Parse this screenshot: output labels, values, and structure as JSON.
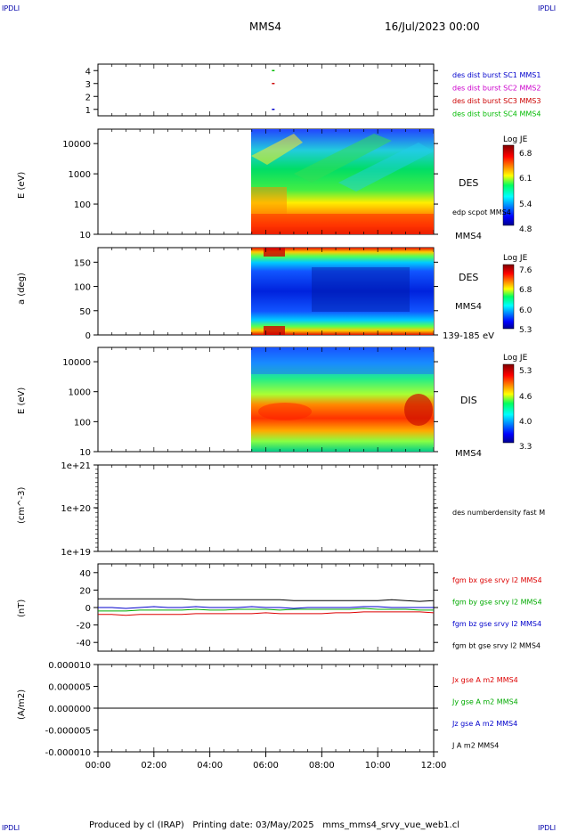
{
  "header": {
    "corner_tl": "IPDLI",
    "corner_tr": "IPDLI",
    "corner_bl": "IPDLI",
    "corner_br": "IPDLI",
    "spacecraft": "MMS4",
    "datetime": "16/Jul/2023 00:00"
  },
  "footer": {
    "text": "Produced by cl (IRAP)   Printing date: 03/May/2025   mms_mms4_srvy_vue_web1.cl"
  },
  "colors": {
    "mms1": "#0000cc",
    "mms2": "#cc00cc",
    "mms3": "#cc0000",
    "mms4": "#00bb00",
    "bx": "#dd0000",
    "by": "#00aa00",
    "bz": "#0000cc",
    "bt": "#000000"
  },
  "chart_data": [
    {
      "type": "scatter",
      "panel": "burst",
      "ylim": [
        0.5,
        4.5
      ],
      "yticks": [
        "1",
        "2",
        "3",
        "4"
      ],
      "series": [
        {
          "name": "des dist burst SC1 MMS1",
          "x": [
            "06:15"
          ],
          "values": [
            1
          ]
        },
        {
          "name": "des dist burst SC2 MMS2",
          "x": [],
          "values": []
        },
        {
          "name": "des dist burst SC3 MMS3",
          "x": [
            "06:15"
          ],
          "values": [
            3
          ]
        },
        {
          "name": "des dist burst SC4 MMS4",
          "x": [
            "06:15"
          ],
          "values": [
            4
          ]
        }
      ]
    },
    {
      "type": "heatmap",
      "panel": "des_energy",
      "ylabel": "E (eV)",
      "yscale": "log",
      "ylim": [
        10,
        30000
      ],
      "yticks": [
        "10",
        "100",
        "1000",
        "10000"
      ],
      "data_start": "05:30",
      "data_end": "12:00",
      "labels": [
        "DES",
        "edp scpot MMS4",
        "MMS4"
      ],
      "colorbar": {
        "title": "Log JE",
        "ticks": [
          "6.8",
          "6.1",
          "5.4",
          "4.8"
        ],
        "range": [
          4.8,
          6.8
        ]
      }
    },
    {
      "type": "heatmap",
      "panel": "des_pitch",
      "ylabel": "a (deg)",
      "ylim": [
        0,
        180
      ],
      "yticks": [
        "0",
        "50",
        "100",
        "150"
      ],
      "data_start": "05:30",
      "data_end": "12:00",
      "labels": [
        "DES",
        "MMS4",
        "139-185 eV"
      ],
      "colorbar": {
        "title": "Log JE",
        "ticks": [
          "7.6",
          "6.8",
          "6.0",
          "5.3"
        ],
        "range": [
          5.3,
          7.6
        ]
      }
    },
    {
      "type": "heatmap",
      "panel": "dis_energy",
      "ylabel": "E (eV)",
      "yscale": "log",
      "ylim": [
        10,
        30000
      ],
      "yticks": [
        "10",
        "100",
        "1000",
        "10000"
      ],
      "data_start": "05:30",
      "data_end": "12:00",
      "labels": [
        "DIS",
        "MMS4"
      ],
      "colorbar": {
        "title": "Log JE",
        "ticks": [
          "5.3",
          "4.6",
          "4.0",
          "3.3"
        ],
        "range": [
          3.3,
          5.3
        ]
      }
    },
    {
      "type": "line",
      "panel": "density",
      "ylabel": "(cm^-3)",
      "yscale": "log",
      "yticks": [
        "1e+19",
        "1e+20",
        "1e+21"
      ],
      "series": [
        {
          "name": "des numberdensity fast M",
          "x": [],
          "values": []
        }
      ]
    },
    {
      "type": "line",
      "panel": "fgm",
      "ylabel": "(nT)",
      "ylim": [
        -50,
        50
      ],
      "yticks": [
        "-40",
        "-20",
        "0",
        "20",
        "40"
      ],
      "x": [
        "00:00",
        "00:30",
        "01:00",
        "01:30",
        "02:00",
        "02:30",
        "03:00",
        "03:30",
        "04:00",
        "04:30",
        "05:00",
        "05:30",
        "06:00",
        "06:30",
        "07:00",
        "07:30",
        "08:00",
        "08:30",
        "09:00",
        "09:30",
        "10:00",
        "10:30",
        "11:00",
        "11:30",
        "12:00"
      ],
      "series": [
        {
          "name": "fgm bx gse srvy l2 MMS4",
          "values": [
            -8,
            -8,
            -9,
            -8,
            -8,
            -8,
            -8,
            -7,
            -7,
            -7,
            -7,
            -7,
            -6,
            -7,
            -7,
            -7,
            -7,
            -6,
            -6,
            -5,
            -5,
            -5,
            -5,
            -5,
            -6
          ]
        },
        {
          "name": "fgm by gse srvy l2 MMS4",
          "values": [
            -4,
            -4,
            -4,
            -3,
            -3,
            -3,
            -3,
            -2,
            -3,
            -3,
            -2,
            -2,
            -2,
            -3,
            -2,
            -2,
            -2,
            -2,
            -2,
            -1,
            -2,
            -2,
            -2,
            -3,
            -3
          ]
        },
        {
          "name": "fgm bz gse srvy l2 MMS4",
          "values": [
            0,
            0,
            -1,
            0,
            1,
            0,
            0,
            1,
            0,
            0,
            0,
            1,
            0,
            0,
            -1,
            0,
            0,
            0,
            0,
            1,
            1,
            0,
            0,
            0,
            0
          ]
        },
        {
          "name": "fgm bt gse srvy l2 MMS4",
          "values": [
            10,
            10,
            10,
            10,
            10,
            10,
            10,
            9,
            9,
            9,
            9,
            9,
            9,
            9,
            8,
            8,
            8,
            8,
            8,
            8,
            8,
            9,
            8,
            7,
            8
          ]
        }
      ]
    },
    {
      "type": "line",
      "panel": "current",
      "ylabel": "(A/m2)",
      "ylim": [
        -1e-05,
        1e-05
      ],
      "yticks": [
        "-0.000010",
        "-0.000005",
        "0.000000",
        "0.000005",
        "0.000010"
      ],
      "series": [
        {
          "name": "Jx gse A m2 MMS4",
          "values": []
        },
        {
          "name": "Jy gse A m2 MMS4",
          "values": []
        },
        {
          "name": "Jz gse A m2 MMS4",
          "values": []
        },
        {
          "name": "J A m2 MMS4",
          "values": [
            0,
            0
          ]
        }
      ]
    }
  ],
  "time_axis": {
    "ticks": [
      "00:00",
      "02:00",
      "04:00",
      "06:00",
      "08:00",
      "10:00",
      "12:00"
    ],
    "range": [
      "00:00",
      "12:00"
    ]
  }
}
